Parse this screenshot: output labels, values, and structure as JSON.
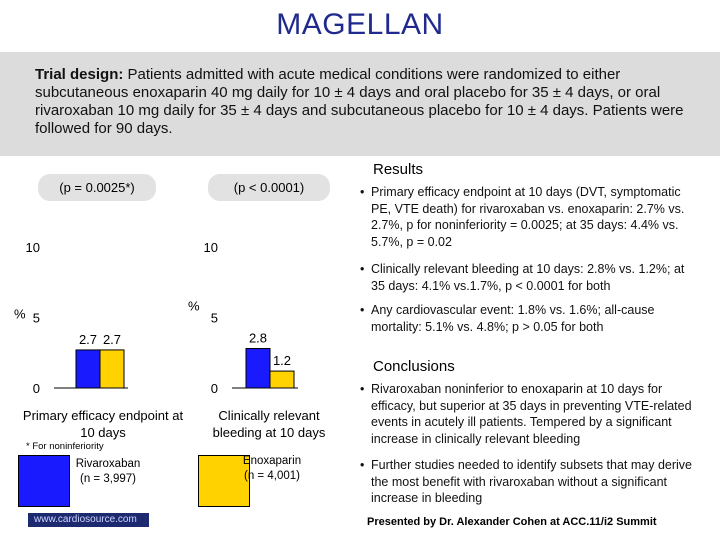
{
  "title": "MAGELLAN",
  "trial_design": {
    "label": "Trial design:",
    "text": " Patients admitted with acute medical conditions were randomized to either subcutaneous enoxaparin 40 mg daily for 10 ± 4 days and oral placebo for 35 ± 4 days, or oral rivaroxaban 10 mg daily for 35 ± 4 days and subcutaneous placebo for 10 ± 4 days. Patients were followed for 90 days."
  },
  "chart_data": {
    "type": "bar",
    "categories": [
      "Primary efficacy endpoint at 10 days",
      "Clinically relevant bleeding at 10 days"
    ],
    "series": [
      {
        "name": "Rivaroxaban (n = 3,997)",
        "color": "#1a1aff",
        "values": [
          2.7,
          2.8
        ]
      },
      {
        "name": "Enoxaparin (n = 4,001)",
        "color": "#ffd200",
        "values": [
          2.7,
          1.2
        ]
      }
    ],
    "ylim": [
      0,
      10
    ],
    "yticks": [
      "0",
      "5",
      "10"
    ],
    "ylabel": "%",
    "p_values": [
      "(p = 0.0025*)",
      "(p < 0.0001)"
    ],
    "value_labels": [
      [
        "2.7",
        "2.7"
      ],
      [
        "2.8",
        "1.2"
      ]
    ],
    "footnote": "* For noninferiority"
  },
  "legend": {
    "rivaroxaban": {
      "name": "Rivaroxaban",
      "n": "(n = 3,997)",
      "color": "#1a1aff"
    },
    "enoxaparin": {
      "name": "Enoxaparin",
      "n": "(n = 4,001)",
      "color": "#ffd200"
    }
  },
  "results": {
    "heading": "Results",
    "bullets": [
      "Primary efficacy endpoint  at 10 days (DVT, symptomatic PE, VTE death) for rivaroxaban vs. enoxaparin: 2.7% vs. 2.7%, p for noninferiority = 0.0025; at 35 days: 4.4% vs. 5.7%, p = 0.02",
      "Clinically relevant bleeding at 10 days: 2.8% vs. 1.2%; at 35 days: 4.1% vs.1.7%, p < 0.0001 for both",
      "Any cardiovascular event: 1.8% vs. 1.6%; all-cause mortality: 5.1% vs. 4.8%; p > 0.05 for both"
    ]
  },
  "conclusions": {
    "heading": "Conclusions",
    "bullets": [
      "Rivaroxaban noninferior to enoxaparin at 10 days for efficacy, but superior at 35 days in preventing VTE-related events in acutely ill patients. Tempered by a significant increase in clinically relevant bleeding",
      "Further studies needed to identify subsets that may derive the most benefit with rivaroxaban without a significant increase in bleeding"
    ]
  },
  "footer": {
    "logo": "www.cardiosource.com",
    "presenter": "Presented by Dr. Alexander Cohen at ACC.11/i2 Summit"
  }
}
